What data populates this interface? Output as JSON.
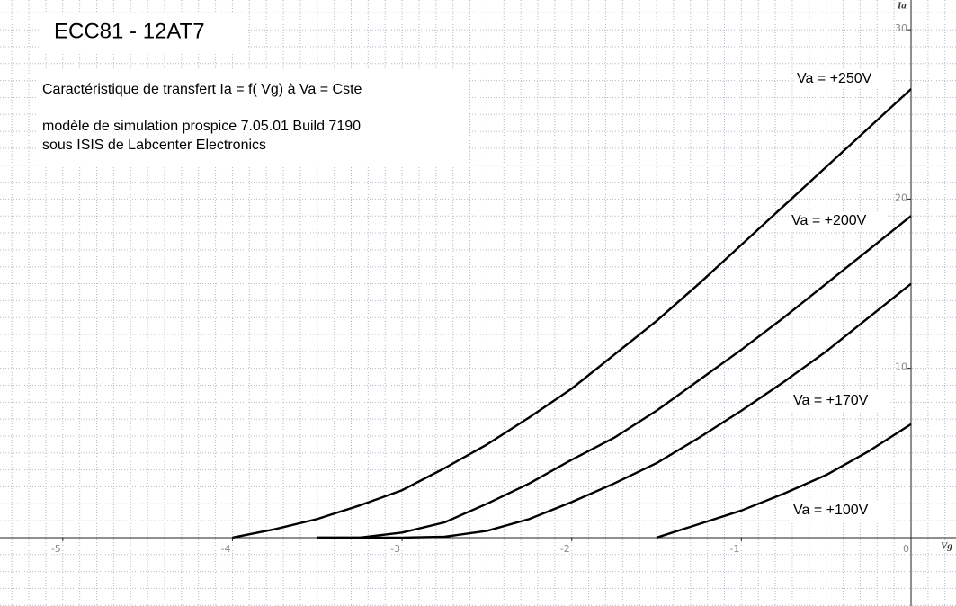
{
  "chart_data": {
    "type": "line",
    "title": "ECC81 - 12AT7",
    "annotations": [
      "Caractéristique de transfert Ia = f( Vg) à Va = Cste",
      "modèle de simulation prospice 7.05.01 Build 7190",
      "sous ISIS de Labcenter Electronics"
    ],
    "x_label": "Vg",
    "y_label": "Ia",
    "xlim": [
      -5.37,
      0.265
    ],
    "ylim": [
      -4.04,
      31.76
    ],
    "xticks": [
      -5,
      -4,
      -3,
      -2,
      -1,
      0
    ],
    "yticks": [
      10,
      20,
      30
    ],
    "grid": true,
    "x_grid_step": 0.1,
    "y_grid_step": 1,
    "series": [
      {
        "name": "Va = +250V",
        "color": "#000000",
        "x": [
          -4,
          -3.75,
          -3.5,
          -3.25,
          -3,
          -2.75,
          -2.5,
          -2.25,
          -2,
          -1.75,
          -1.5,
          -1.25,
          -1,
          -0.75,
          -0.5,
          -0.25,
          0
        ],
        "values": [
          0,
          0.5,
          1.1,
          1.9,
          2.8,
          4.1,
          5.5,
          7.1,
          8.8,
          10.8,
          12.8,
          15.0,
          17.3,
          19.6,
          21.9,
          24.2,
          26.5
        ]
      },
      {
        "name": "Va = +200V",
        "color": "#000000",
        "x": [
          -3.5,
          -3.25,
          -3,
          -2.75,
          -2.5,
          -2.25,
          -2,
          -1.75,
          -1.5,
          -1.25,
          -1,
          -0.75,
          -0.5,
          -0.25,
          0
        ],
        "values": [
          0,
          0,
          0.3,
          0.9,
          2.0,
          3.2,
          4.6,
          5.9,
          7.5,
          9.3,
          11.1,
          13.0,
          15.0,
          17.0,
          19.0
        ]
      },
      {
        "name": "Va = +170V",
        "color": "#000000",
        "x": [
          -3.5,
          -3,
          -2.75,
          -2.5,
          -2.25,
          -2,
          -1.75,
          -1.5,
          -1.25,
          -1,
          -0.75,
          -0.5,
          -0.25,
          0
        ],
        "values": [
          0,
          0,
          0.05,
          0.4,
          1.1,
          2.1,
          3.2,
          4.4,
          5.9,
          7.5,
          9.2,
          11.0,
          13.0,
          15.0
        ]
      },
      {
        "name": "Va = +100V",
        "color": "#000000",
        "x": [
          -1.5,
          -1.25,
          -1,
          -0.75,
          -0.5,
          -0.25,
          0
        ],
        "values": [
          0,
          0.8,
          1.6,
          2.6,
          3.7,
          5.1,
          6.7
        ]
      }
    ]
  }
}
